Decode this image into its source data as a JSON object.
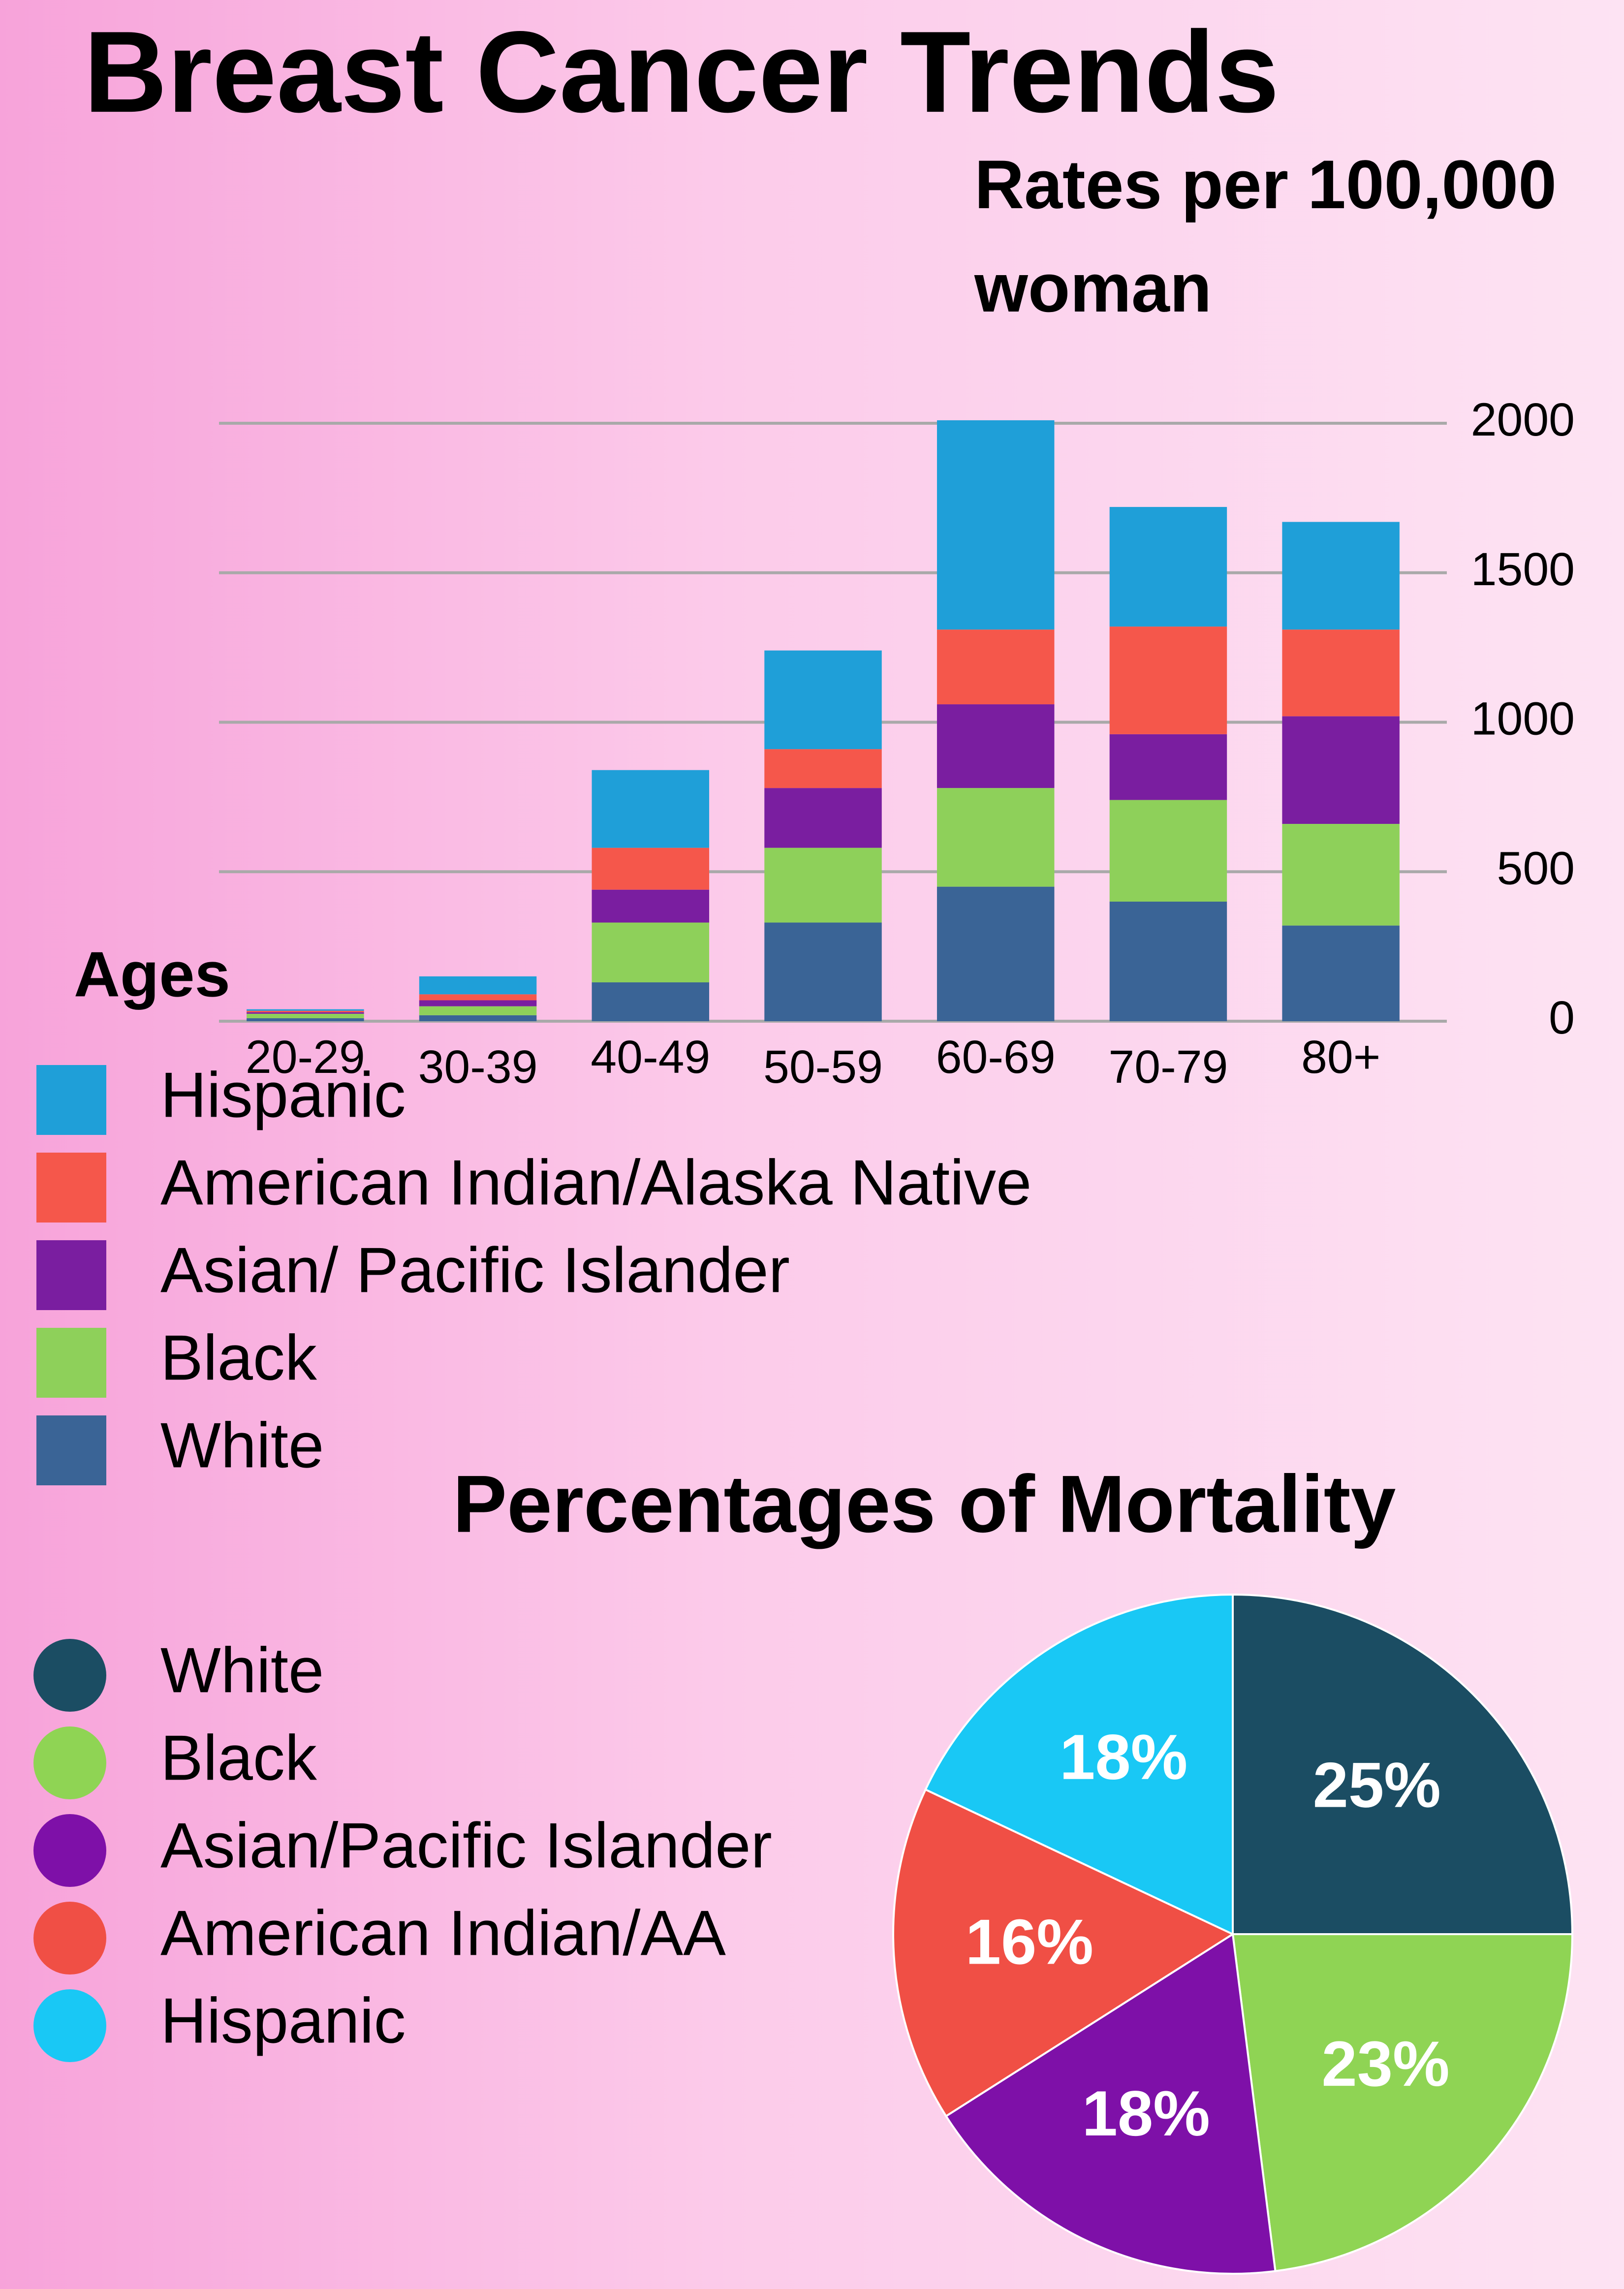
{
  "chart_data": [
    {
      "type": "bar",
      "stacked": true,
      "title": "Breast Cancer Trends",
      "subtitle": "Rates per 100,000 woman",
      "x_label": "Ages",
      "categories": [
        "20-29",
        "30-39",
        "40-49",
        "50-59",
        "60-69",
        "70-79",
        "80+"
      ],
      "series": [
        {
          "name": "Hispanic",
          "color": "#1f9fd8",
          "values": [
            5,
            60,
            260,
            330,
            700,
            400,
            360
          ]
        },
        {
          "name": "American Indian/Alaska Native",
          "color": "#f5574b",
          "values": [
            5,
            20,
            140,
            130,
            250,
            360,
            290
          ]
        },
        {
          "name": "Asian/ Pacific Islander",
          "color": "#7a1ea0",
          "values": [
            5,
            20,
            110,
            200,
            280,
            220,
            360
          ]
        },
        {
          "name": "Black",
          "color": "#8ed05a",
          "values": [
            15,
            30,
            200,
            250,
            330,
            340,
            340
          ]
        },
        {
          "name": "White",
          "color": "#3a6496",
          "values": [
            10,
            20,
            130,
            330,
            450,
            400,
            320
          ]
        }
      ],
      "ylim": [
        0,
        2000
      ],
      "yticks": [
        0,
        500,
        1000,
        1500,
        2000
      ],
      "grid": true
    },
    {
      "type": "pie",
      "title": "Percentages of Mortality",
      "categories": [
        "White",
        "Black",
        "Asian/Pacific Islander",
        "American Indian/AA",
        "Hispanic"
      ],
      "values": [
        25,
        23,
        18,
        16,
        18
      ],
      "value_labels": [
        "25%",
        "23%",
        "18%",
        "16%",
        "18%"
      ],
      "colors": [
        "#1b4d63",
        "#8fd454",
        "#7e10a8",
        "#f04f45",
        "#19c8f5"
      ]
    }
  ]
}
